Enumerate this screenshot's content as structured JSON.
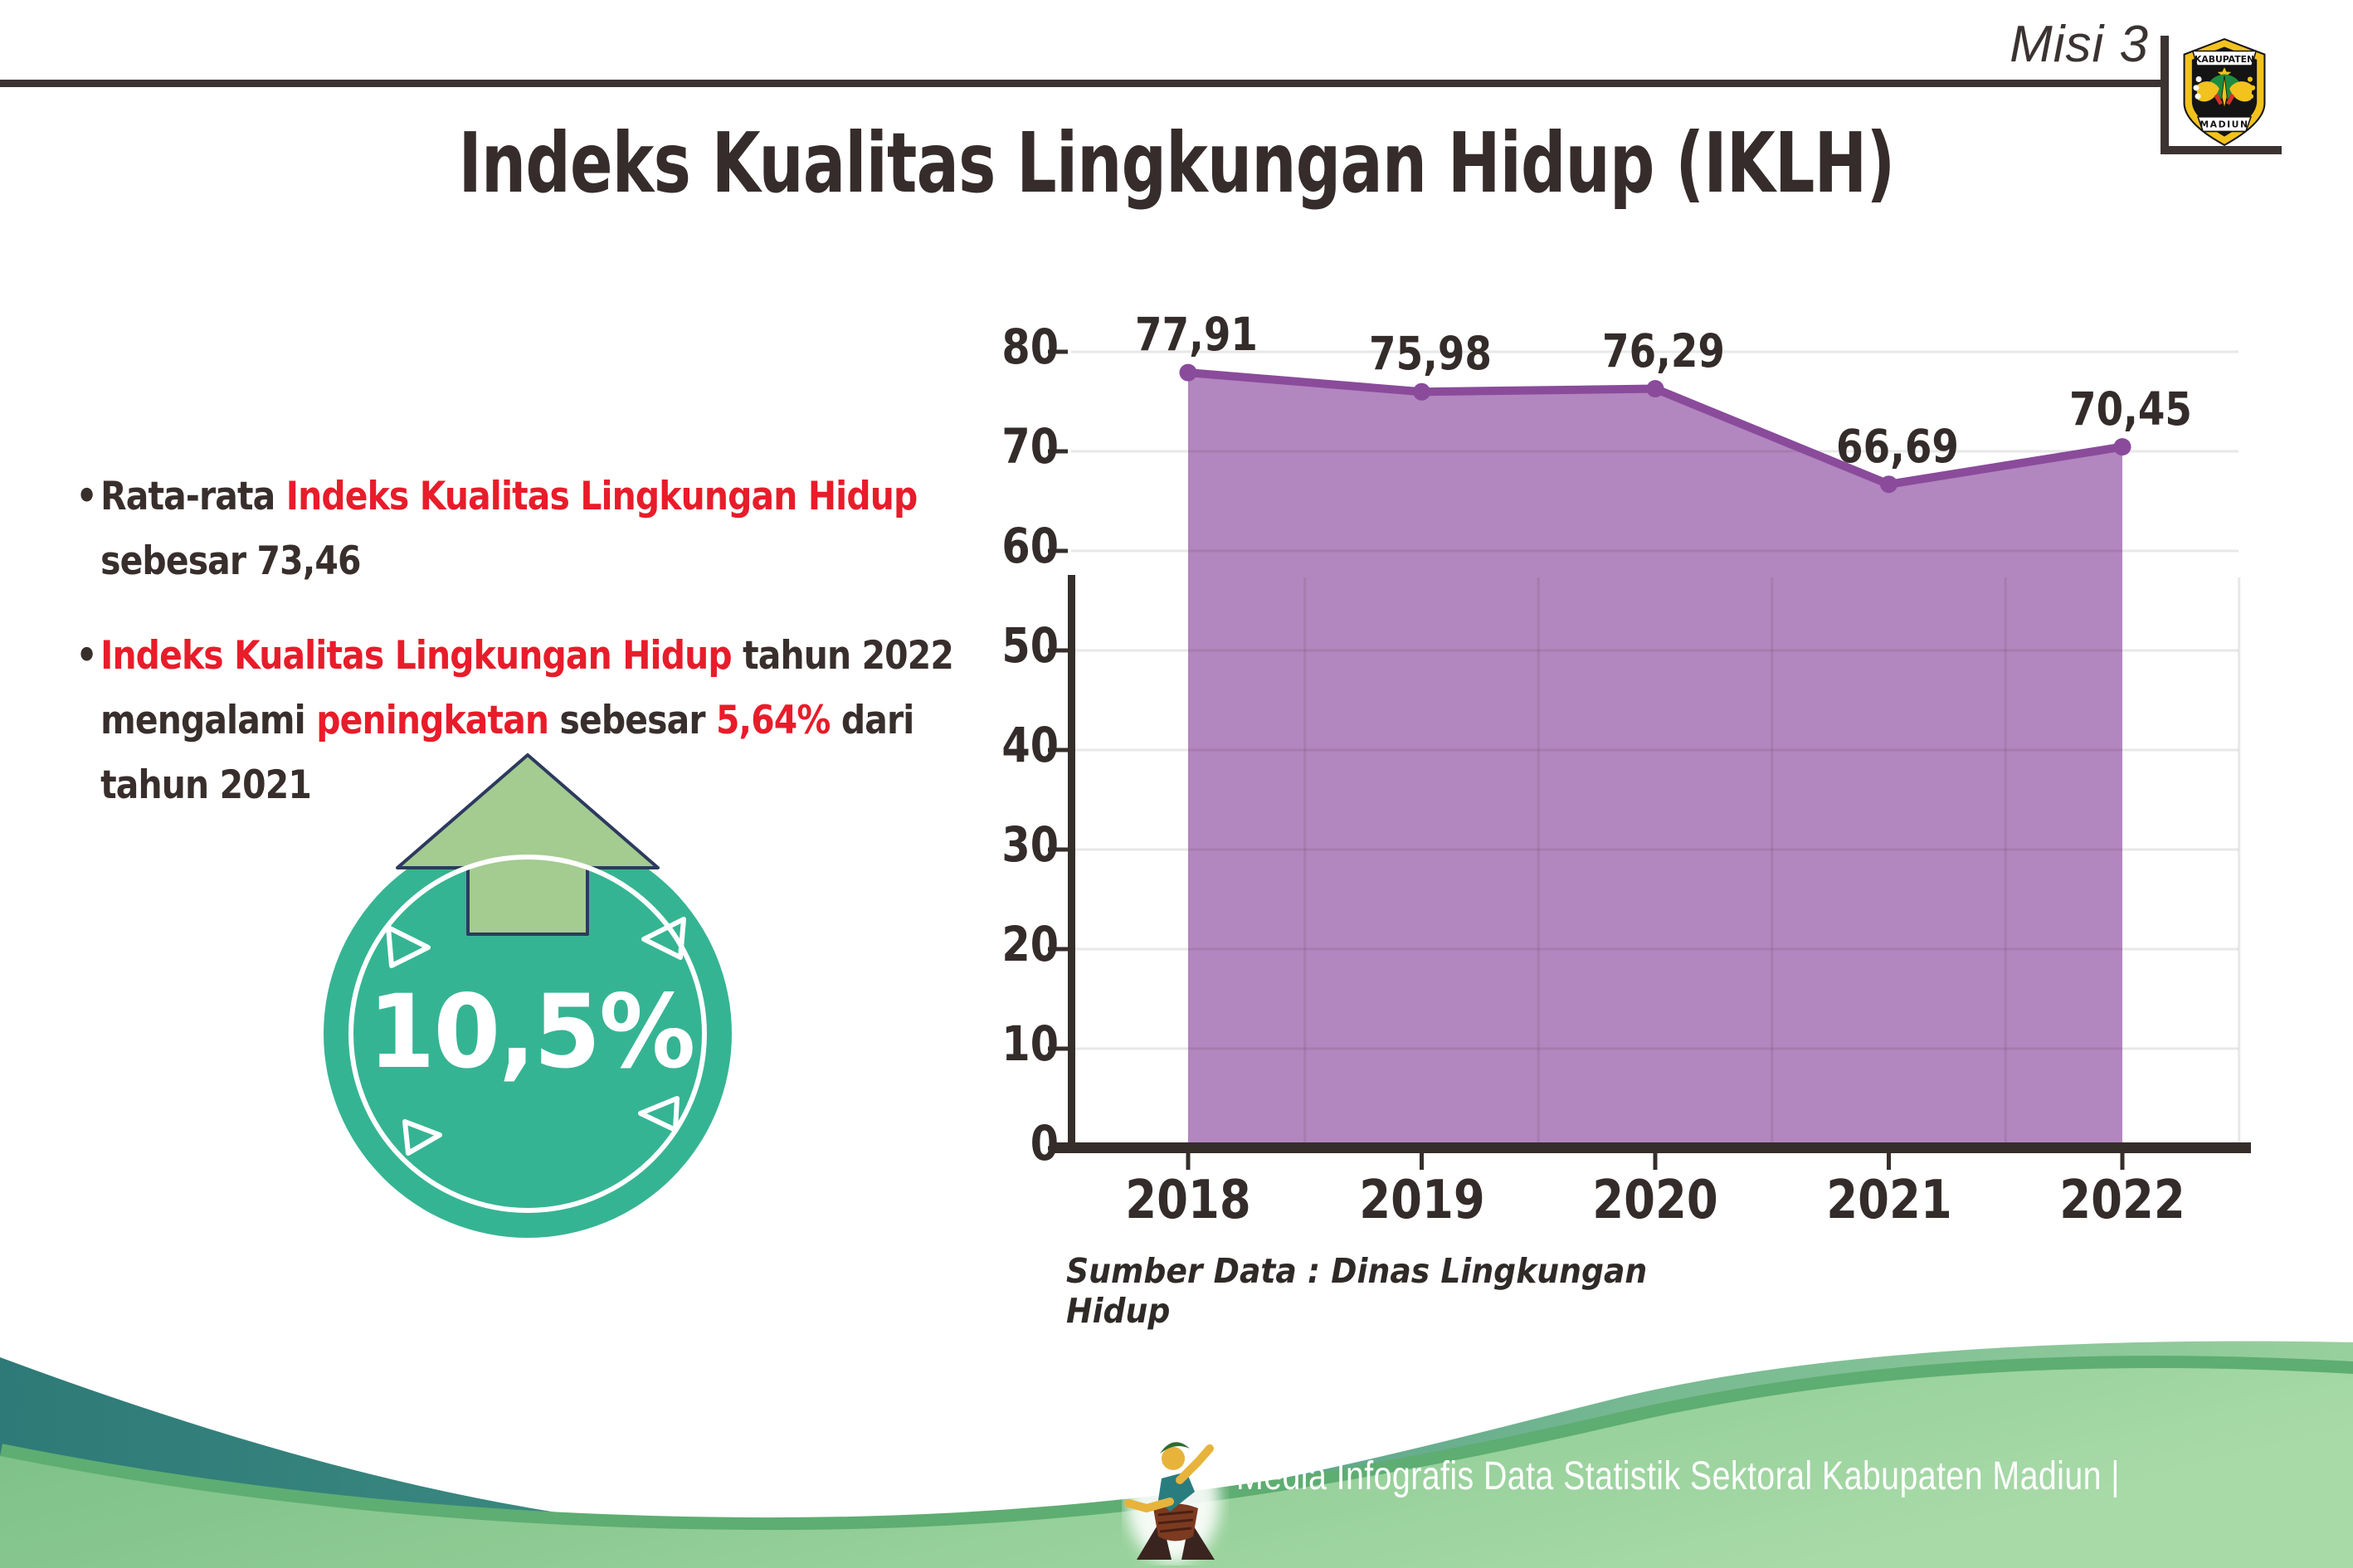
{
  "header": {
    "mission_label": "Misi 3",
    "logo": {
      "top_text": "KABUPATEN",
      "bottom_text": "MADIUN"
    }
  },
  "title": "Indeks Kualitas Lingkungan Hidup (IKLH)",
  "bullets": [
    {
      "lines": [
        [
          {
            "t": "Rata-rata ",
            "c": "dark"
          },
          {
            "t": "Indeks Kualitas Lingkungan Hidup",
            "c": "red"
          }
        ],
        [
          {
            "t": "sebesar 73,46",
            "c": "dark"
          }
        ]
      ]
    },
    {
      "lines": [
        [
          {
            "t": "Indeks Kualitas Lingkungan Hidup",
            "c": "red"
          },
          {
            "t": " tahun 2022",
            "c": "dark"
          }
        ],
        [
          {
            "t": "mengalami ",
            "c": "dark"
          },
          {
            "t": "peningkatan",
            "c": "red"
          },
          {
            "t": " sebesar ",
            "c": "dark"
          },
          {
            "t": "5,64%",
            "c": "red"
          },
          {
            "t": " dari",
            "c": "dark"
          }
        ],
        [
          {
            "t": "tahun 2021",
            "c": "dark"
          }
        ]
      ]
    }
  ],
  "badge": {
    "value": "10,5%",
    "icon": "arrow-up-icon"
  },
  "chart_data": {
    "type": "area",
    "categories": [
      "2018",
      "2019",
      "2020",
      "2021",
      "2022"
    ],
    "series": [
      {
        "name": "IKLH",
        "values": [
          77.91,
          75.98,
          76.29,
          66.69,
          70.45
        ]
      }
    ],
    "value_labels": [
      "77,91",
      "75,98",
      "76,29",
      "66,69",
      "70,45"
    ],
    "ylim": [
      0,
      85
    ],
    "yticks": [
      0,
      10,
      20,
      30,
      40,
      50,
      60,
      70,
      80
    ],
    "grid": true,
    "legend": "none",
    "line_color": "#8a4b9b",
    "fill_color": "#b286bf",
    "source_note": "Sumber Data : Dinas Lingkungan Hidup"
  },
  "footer": {
    "credit": "Media Infografis Data Statistik Sektoral Kabupaten Madiun |"
  },
  "colors": {
    "text_dark": "#382f2d",
    "accent_red": "#e81c2a",
    "badge_teal": "#35b493",
    "arrow_green": "#a4cb90",
    "footer_teal": "#2e7a78",
    "footer_green": "#8cca92"
  }
}
